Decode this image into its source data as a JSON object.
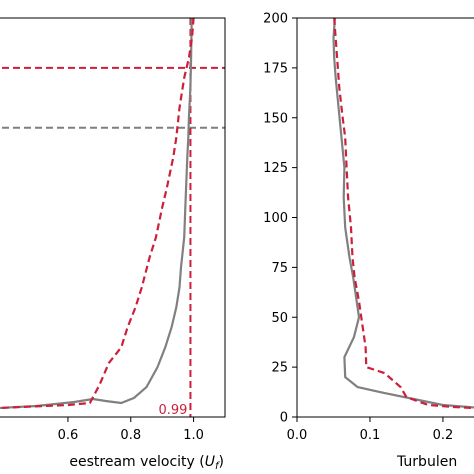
{
  "chart_data": [
    {
      "type": "line",
      "xlabel": "eestream velocity (",
      "xlabel_symbol": "U",
      "xlabel_subscript": "f",
      "xlabel_close": ")",
      "xlim": [
        0.32,
        1.1
      ],
      "ylim": [
        0,
        200
      ],
      "x_ticks": [
        {
          "value": 0.6,
          "label": "0.6"
        },
        {
          "value": 0.8,
          "label": "0.8"
        },
        {
          "value": 1.0,
          "label": "1.0"
        }
      ],
      "annotation": {
        "text": "0.99",
        "x": 0.99,
        "y": 2,
        "color": "#cc1f3a"
      },
      "reference_lines": [
        {
          "orientation": "horizontal",
          "y": 175,
          "color": "#cc1f3a",
          "style": "dashed"
        },
        {
          "orientation": "horizontal",
          "y": 145,
          "color": "#7f7f7f",
          "style": "dashed"
        },
        {
          "orientation": "vertical",
          "x": 0.99,
          "color": "#cc1f3a",
          "style": "dashed"
        }
      ],
      "series": [
        {
          "color": "#808080",
          "style": "solid",
          "points": [
            [
              0.32,
              4
            ],
            [
              0.5,
              5.5
            ],
            [
              0.62,
              7.5
            ],
            [
              0.68,
              9
            ],
            [
              0.72,
              8
            ],
            [
              0.77,
              7
            ],
            [
              0.81,
              9.5
            ],
            [
              0.85,
              15
            ],
            [
              0.885,
              25
            ],
            [
              0.91,
              35
            ],
            [
              0.93,
              45
            ],
            [
              0.945,
              55
            ],
            [
              0.955,
              65
            ],
            [
              0.96,
              75
            ],
            [
              0.97,
              90
            ],
            [
              0.975,
              110
            ],
            [
              0.98,
              130
            ],
            [
              0.983,
              140
            ],
            [
              0.985,
              150
            ],
            [
              0.99,
              165
            ],
            [
              0.992,
              180
            ],
            [
              0.994,
              200
            ]
          ]
        },
        {
          "color": "#cc1f3a",
          "style": "dashed",
          "points": [
            [
              0.32,
              4
            ],
            [
              0.45,
              5
            ],
            [
              0.6,
              6
            ],
            [
              0.67,
              7
            ],
            [
              0.7,
              16
            ],
            [
              0.73,
              27
            ],
            [
              0.77,
              35
            ],
            [
              0.79,
              45
            ],
            [
              0.815,
              55
            ],
            [
              0.835,
              65
            ],
            [
              0.86,
              80
            ],
            [
              0.88,
              90
            ],
            [
              0.9,
              105
            ],
            [
              0.915,
              115
            ],
            [
              0.935,
              130
            ],
            [
              0.945,
              140
            ],
            [
              0.955,
              155
            ],
            [
              0.97,
              170
            ],
            [
              0.985,
              180
            ],
            [
              0.995,
              190
            ],
            [
              1.0,
              200
            ]
          ]
        }
      ]
    },
    {
      "type": "line",
      "xlabel": "Turbulen",
      "xlim": [
        0,
        0.27
      ],
      "ylim": [
        0,
        200
      ],
      "x_ticks": [
        {
          "value": 0.0,
          "label": "0.0"
        },
        {
          "value": 0.1,
          "label": "0.1"
        },
        {
          "value": 0.2,
          "label": "0.2"
        }
      ],
      "y_ticks": [
        {
          "value": 0,
          "label": "0"
        },
        {
          "value": 25,
          "label": "25"
        },
        {
          "value": 50,
          "label": "50"
        },
        {
          "value": 75,
          "label": "75"
        },
        {
          "value": 100,
          "label": "100"
        },
        {
          "value": 125,
          "label": "125"
        },
        {
          "value": 150,
          "label": "150"
        },
        {
          "value": 175,
          "label": "175"
        },
        {
          "value": 200,
          "label": "200"
        }
      ],
      "series": [
        {
          "color": "#808080",
          "style": "solid",
          "points": [
            [
              0.052,
              200
            ],
            [
              0.05,
              190
            ],
            [
              0.051,
              180
            ],
            [
              0.053,
              170
            ],
            [
              0.057,
              155
            ],
            [
              0.061,
              140
            ],
            [
              0.065,
              125
            ],
            [
              0.064,
              110
            ],
            [
              0.066,
              95
            ],
            [
              0.072,
              80
            ],
            [
              0.077,
              70
            ],
            [
              0.081,
              60
            ],
            [
              0.085,
              50
            ],
            [
              0.078,
              40
            ],
            [
              0.065,
              30
            ],
            [
              0.066,
              20
            ],
            [
              0.083,
              15
            ],
            [
              0.12,
              12
            ],
            [
              0.16,
              9
            ],
            [
              0.2,
              6
            ],
            [
              0.235,
              5
            ],
            [
              0.27,
              4
            ]
          ]
        },
        {
          "color": "#cc1f3a",
          "style": "dashed",
          "points": [
            [
              0.051,
              200
            ],
            [
              0.055,
              180
            ],
            [
              0.058,
              165
            ],
            [
              0.062,
              152
            ],
            [
              0.066,
              140
            ],
            [
              0.068,
              125
            ],
            [
              0.07,
              110
            ],
            [
              0.074,
              95
            ],
            [
              0.076,
              80
            ],
            [
              0.079,
              70
            ],
            [
              0.085,
              58
            ],
            [
              0.09,
              45
            ],
            [
              0.094,
              35
            ],
            [
              0.095,
              25
            ],
            [
              0.12,
              22
            ],
            [
              0.142,
              15
            ],
            [
              0.15,
              10
            ],
            [
              0.18,
              6
            ],
            [
              0.215,
              5
            ],
            [
              0.27,
              4
            ]
          ]
        }
      ]
    }
  ]
}
